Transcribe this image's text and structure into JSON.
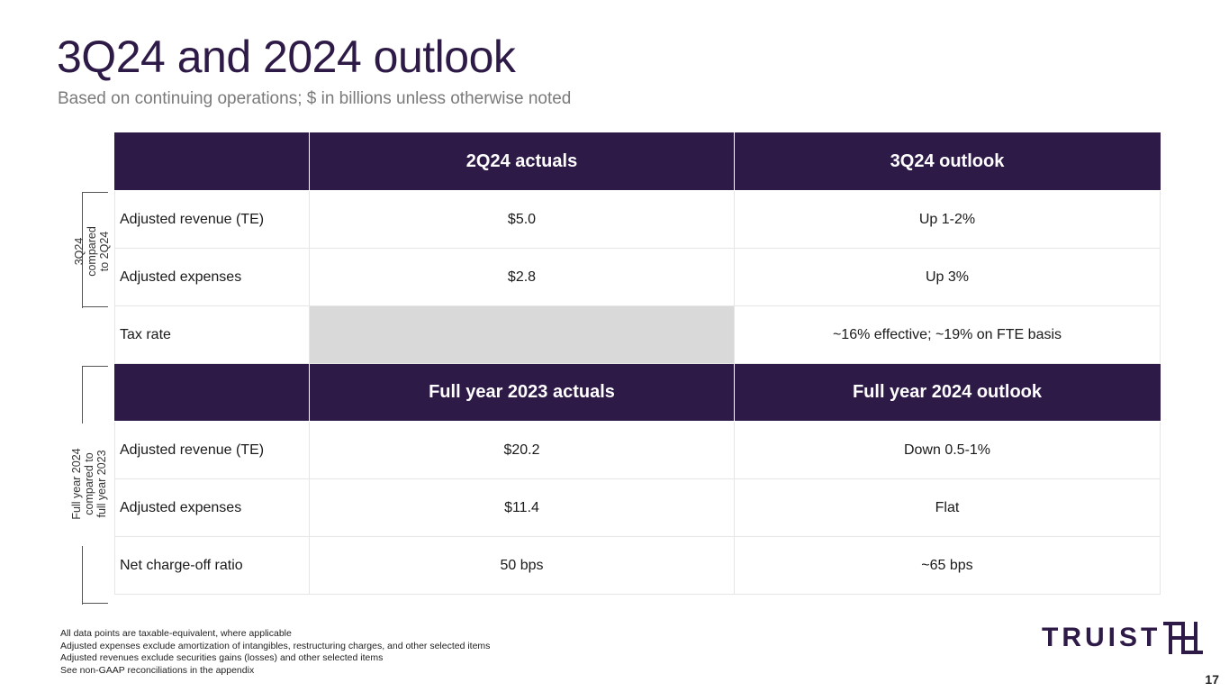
{
  "slide": {
    "title": "3Q24 and 2024 outlook",
    "subtitle": "Based on continuing operations; $ in billions unless otherwise noted",
    "page_number": "17"
  },
  "section1": {
    "side_label_line1": "3Q24",
    "side_label_line2": "compared",
    "side_label_line3": "to 2Q24",
    "header": {
      "col1": "",
      "col2": "2Q24 actuals",
      "col3": "3Q24 outlook"
    },
    "rows": [
      {
        "label": "Adjusted revenue (TE)",
        "actual": "$5.0",
        "outlook": "Up 1-2%"
      },
      {
        "label": "Adjusted expenses",
        "actual": "$2.8",
        "outlook": "Up 3%"
      },
      {
        "label": "Tax rate",
        "actual": "",
        "outlook": "~16% effective; ~19% on FTE basis"
      }
    ]
  },
  "section2": {
    "side_label_line1": "Full year 2024",
    "side_label_line2": "compared to",
    "side_label_line3": "full year 2023",
    "header": {
      "col1": "",
      "col2": "Full year 2023 actuals",
      "col3": "Full year 2024 outlook"
    },
    "rows": [
      {
        "label": "Adjusted revenue (TE)",
        "actual": "$20.2",
        "outlook": "Down 0.5-1%"
      },
      {
        "label": "Adjusted expenses",
        "actual": "$11.4",
        "outlook": "Flat"
      },
      {
        "label": "Net charge-off ratio",
        "actual": "50 bps",
        "outlook": "~65 bps"
      }
    ]
  },
  "footnotes": [
    "All data points are taxable-equivalent, where applicable",
    "Adjusted expenses exclude amortization of intangibles, restructuring charges, and other selected items",
    "Adjusted revenues exclude securities gains (losses) and other selected items",
    "See non-GAAP reconciliations in the appendix"
  ],
  "logo": {
    "text": "TRUIST",
    "icon": "truist-th-logo-icon"
  },
  "colors": {
    "brand_purple": "#2e1a47",
    "shade_gray": "#d9d9d9",
    "subtitle_gray": "#7a7a7a"
  }
}
